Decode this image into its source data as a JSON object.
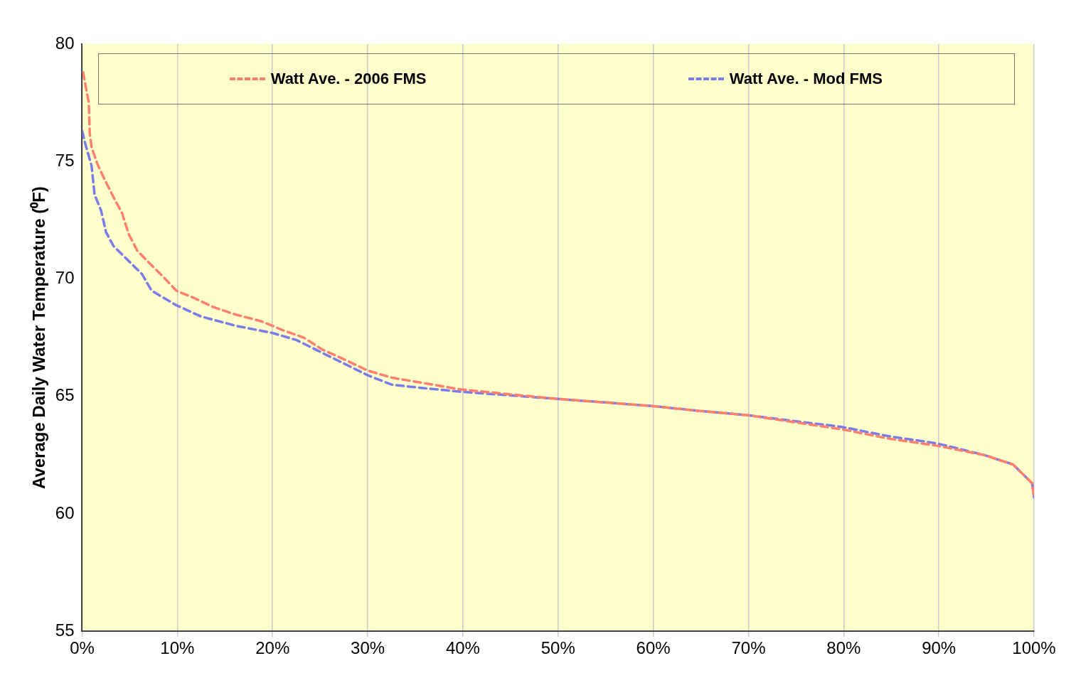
{
  "chart_data": {
    "type": "line",
    "ylabel": "Average Daily Water Temperature (⁰F)",
    "xlim": [
      0,
      100
    ],
    "xticks": [
      {
        "value": 0,
        "label": "0%"
      },
      {
        "value": 10,
        "label": "10%"
      },
      {
        "value": 20,
        "label": "20%"
      },
      {
        "value": 30,
        "label": "30%"
      },
      {
        "value": 40,
        "label": "40%"
      },
      {
        "value": 50,
        "label": "50%"
      },
      {
        "value": 60,
        "label": "60%"
      },
      {
        "value": 70,
        "label": "70%"
      },
      {
        "value": 80,
        "label": "80%"
      },
      {
        "value": 90,
        "label": "90%"
      },
      {
        "value": 100,
        "label": "100%"
      }
    ],
    "ylim": [
      55,
      80
    ],
    "yticks": [
      55,
      60,
      65,
      70,
      75,
      80
    ],
    "grid": "x",
    "legend": "top",
    "line_style": "dashed",
    "marker": "none",
    "series": [
      {
        "name": "Watt Ave. - 2006 FMS",
        "color": "#ff7f6e",
        "x": [
          0.1,
          0.7,
          0.8,
          1.0,
          1.6,
          2.4,
          3.4,
          4.2,
          4.9,
          5.8,
          7.0,
          8.5,
          9.9,
          11.7,
          13.8,
          16.0,
          18.8,
          21.2,
          23.3,
          25.2,
          27.4,
          30.0,
          32.5,
          39.7,
          49.7,
          59.6,
          64.4,
          69.9,
          79.8,
          84.8,
          89.8,
          94.8,
          97.8,
          99.8,
          100
        ],
        "values": [
          78.8,
          77.5,
          76.2,
          75.6,
          74.9,
          74.2,
          73.4,
          72.8,
          71.9,
          71.2,
          70.7,
          70.1,
          69.5,
          69.2,
          68.8,
          68.5,
          68.2,
          67.8,
          67.5,
          67.0,
          66.6,
          66.1,
          65.8,
          65.3,
          64.9,
          64.6,
          64.4,
          64.2,
          63.6,
          63.2,
          62.9,
          62.5,
          62.1,
          61.3,
          60.7
        ]
      },
      {
        "name": "Watt Ave. - Mod FMS",
        "color": "#7a7ae8",
        "x": [
          0,
          0.3,
          1.0,
          1.3,
          2.0,
          2.5,
          3.3,
          4.8,
          6.3,
          7.3,
          9.8,
          12.5,
          16.2,
          20.0,
          22.5,
          25.0,
          27.5,
          30.0,
          32.5,
          34.7,
          39.7,
          49.7,
          59.6,
          64.4,
          69.9,
          79.8,
          84.8,
          89.8,
          94.8,
          97.8,
          99.8,
          100
        ],
        "values": [
          76.3,
          75.8,
          74.8,
          73.6,
          72.9,
          72.0,
          71.4,
          70.8,
          70.2,
          69.5,
          68.9,
          68.4,
          68.0,
          67.7,
          67.4,
          66.9,
          66.4,
          65.9,
          65.5,
          65.4,
          65.2,
          64.9,
          64.6,
          64.4,
          64.2,
          63.7,
          63.3,
          63.0,
          62.5,
          62.1,
          61.3,
          60.7
        ]
      }
    ]
  }
}
